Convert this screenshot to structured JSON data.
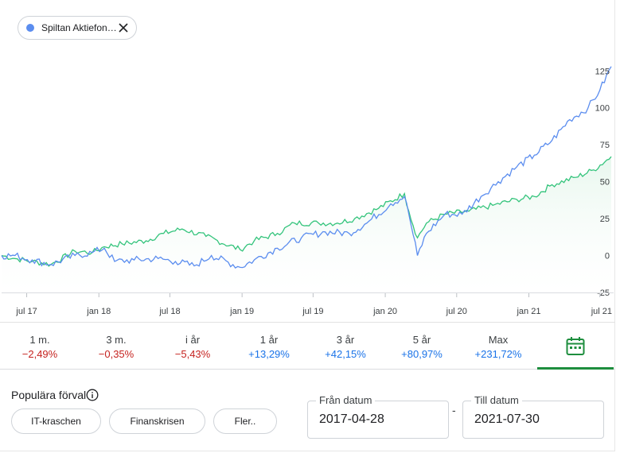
{
  "chip": {
    "label": "Spiltan Aktiefon…",
    "dot_color": "#5b8def",
    "close_icon": "close-icon"
  },
  "periods": [
    {
      "label": "1 m.",
      "value": "−2,49%",
      "sign": "neg"
    },
    {
      "label": "3 m.",
      "value": "−0,35%",
      "sign": "neg"
    },
    {
      "label": "i år",
      "value": "−5,43%",
      "sign": "neg"
    },
    {
      "label": "1 år",
      "value": "+13,29%",
      "sign": "pos"
    },
    {
      "label": "3 år",
      "value": "+42,15%",
      "sign": "pos"
    },
    {
      "label": "5 år",
      "value": "+80,97%",
      "sign": "pos"
    },
    {
      "label": "Max",
      "value": "+231,72%",
      "sign": "pos"
    }
  ],
  "calendar_icon": "calendar-icon",
  "presets": {
    "title": "Populära förval",
    "info_icon": "info-icon",
    "buttons": [
      "IT-kraschen",
      "Finanskrisen",
      "Fler.."
    ]
  },
  "date_range": {
    "from_label": "Från datum",
    "from_value": "2017-04-28",
    "separator": "-",
    "to_label": "Till datum",
    "to_value": "2021-07-30"
  },
  "colors": {
    "blue_series": "#5b8def",
    "green_series": "#34c47c",
    "green_fill": "#e8f7ee",
    "negative": "#c5221f",
    "positive": "#1a73e8",
    "active_tab": "#1e8e3e"
  },
  "chart_data": {
    "type": "line",
    "x_tick_labels": [
      "jul 17",
      "jan 18",
      "jul 18",
      "jan 19",
      "jul 19",
      "jan 20",
      "jul 20",
      "jan 21",
      "jul 21"
    ],
    "y_tick_labels": [
      "125",
      "100",
      "75",
      "50",
      "25",
      "0",
      "-25"
    ],
    "ylim": [
      -25,
      130
    ],
    "xlim": [
      "2017-04-28",
      "2021-07-30"
    ],
    "grid": false,
    "series": [
      {
        "color": "#5b8def",
        "points": [
          [
            "2017-04-28",
            0
          ],
          [
            "2017-06-01",
            0
          ],
          [
            "2017-07-15",
            -3
          ],
          [
            "2017-09-01",
            -6
          ],
          [
            "2017-11-01",
            0
          ],
          [
            "2017-12-15",
            2
          ],
          [
            "2018-01-15",
            5
          ],
          [
            "2018-02-10",
            -4
          ],
          [
            "2018-04-01",
            -3
          ],
          [
            "2018-06-01",
            -2
          ],
          [
            "2018-07-15",
            -4
          ],
          [
            "2018-09-01",
            -7
          ],
          [
            "2018-10-15",
            0
          ],
          [
            "2018-12-27",
            -8
          ],
          [
            "2019-02-01",
            -3
          ],
          [
            "2019-04-01",
            5
          ],
          [
            "2019-06-01",
            12
          ],
          [
            "2019-08-01",
            16
          ],
          [
            "2019-10-01",
            15
          ],
          [
            "2019-11-15",
            22
          ],
          [
            "2020-01-15",
            35
          ],
          [
            "2020-02-19",
            40
          ],
          [
            "2020-03-01",
            28
          ],
          [
            "2020-03-23",
            0
          ],
          [
            "2020-04-15",
            15
          ],
          [
            "2020-06-01",
            28
          ],
          [
            "2020-07-15",
            28
          ],
          [
            "2020-09-01",
            40
          ],
          [
            "2020-10-15",
            50
          ],
          [
            "2020-12-01",
            60
          ],
          [
            "2021-01-15",
            68
          ],
          [
            "2021-03-01",
            78
          ],
          [
            "2021-04-15",
            92
          ],
          [
            "2021-06-01",
            100
          ],
          [
            "2021-07-01",
            112
          ],
          [
            "2021-07-30",
            128
          ]
        ]
      },
      {
        "color": "#34c47c",
        "points": [
          [
            "2017-04-28",
            0
          ],
          [
            "2017-06-01",
            -2
          ],
          [
            "2017-07-15",
            -4
          ],
          [
            "2017-09-01",
            -6
          ],
          [
            "2017-11-01",
            3
          ],
          [
            "2017-12-15",
            2
          ],
          [
            "2018-01-15",
            6
          ],
          [
            "2018-03-01",
            8
          ],
          [
            "2018-05-01",
            10
          ],
          [
            "2018-06-15",
            15
          ],
          [
            "2018-08-01",
            18
          ],
          [
            "2018-10-01",
            13
          ],
          [
            "2018-12-27",
            4
          ],
          [
            "2019-02-01",
            10
          ],
          [
            "2019-04-01",
            15
          ],
          [
            "2019-05-15",
            22
          ],
          [
            "2019-07-15",
            22
          ],
          [
            "2019-09-01",
            22
          ],
          [
            "2019-10-15",
            25
          ],
          [
            "2019-12-15",
            32
          ],
          [
            "2020-02-19",
            42
          ],
          [
            "2020-03-01",
            30
          ],
          [
            "2020-03-23",
            12
          ],
          [
            "2020-04-15",
            22
          ],
          [
            "2020-06-01",
            28
          ],
          [
            "2020-08-01",
            30
          ],
          [
            "2020-10-01",
            34
          ],
          [
            "2020-12-01",
            38
          ],
          [
            "2021-01-15",
            40
          ],
          [
            "2021-03-01",
            48
          ],
          [
            "2021-05-01",
            53
          ],
          [
            "2021-06-15",
            58
          ],
          [
            "2021-07-30",
            67
          ]
        ]
      }
    ]
  }
}
